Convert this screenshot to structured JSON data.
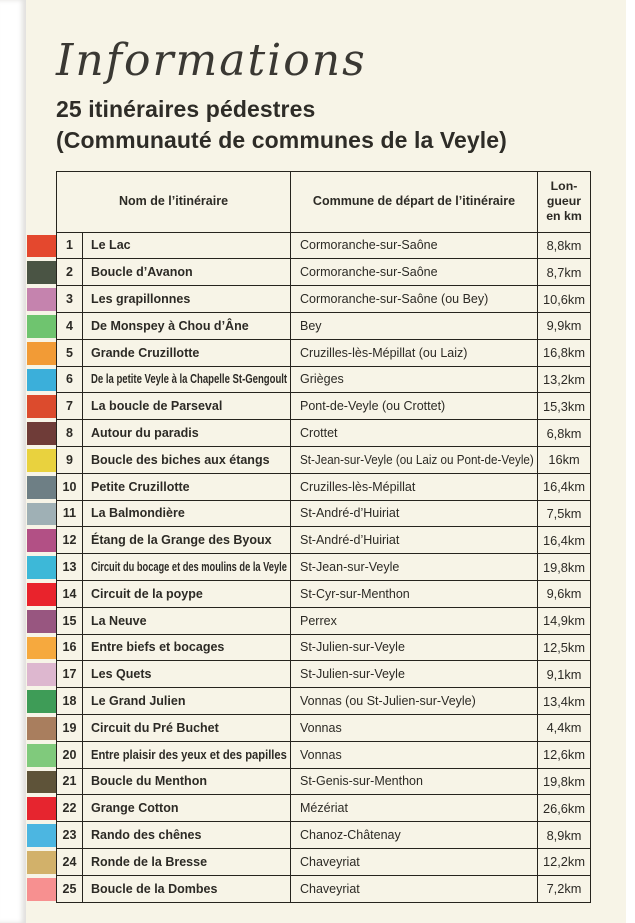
{
  "page": {
    "script_title": "Informations",
    "subtitle_line1": "25 itinéraires pédestres",
    "subtitle_line2": "(Communauté de communes de la Veyle)",
    "background_color": "#f7f4e7",
    "ink_color": "#26241e"
  },
  "table": {
    "headers": {
      "name": "Nom de l’itinéraire",
      "commune": "Commune de départ de l’itinéraire",
      "length_lines": [
        "Lon-",
        "gueur",
        "en km"
      ]
    },
    "rows": [
      {
        "num": "1",
        "color": "#e4482e",
        "name": "Le Lac",
        "commune": "Cormoranche-sur-Saône",
        "length": "8,8km"
      },
      {
        "num": "2",
        "color": "#4a5444",
        "name": "Boucle d’Avanon",
        "commune": "Cormoranche-sur-Saône",
        "length": "8,7km"
      },
      {
        "num": "3",
        "color": "#c583ae",
        "name": "Les grapillonnes",
        "commune": "Cormoranche-sur-Saône (ou Bey)",
        "length": "10,6km"
      },
      {
        "num": "4",
        "color": "#6fc46f",
        "name": "De Monspey à Chou d’Âne",
        "commune": "Bey",
        "length": "9,9km"
      },
      {
        "num": "5",
        "color": "#f29b36",
        "name": "Grande Cruzillotte",
        "commune": "Cruzilles-lès-Mépillat (ou Laiz)",
        "length": "16,8km"
      },
      {
        "num": "6",
        "color": "#3bafda",
        "name": "De la petite Veyle à la Chapelle St-Gengoult",
        "commune": "Grièges",
        "length": "13,2km"
      },
      {
        "num": "7",
        "color": "#dc4b2d",
        "name": "La boucle de Parseval",
        "commune": "Pont-de-Veyle (ou Crottet)",
        "length": "15,3km"
      },
      {
        "num": "8",
        "color": "#6f3c38",
        "name": "Autour du paradis",
        "commune": "Crottet",
        "length": "6,8km"
      },
      {
        "num": "9",
        "color": "#e9d23e",
        "name": "Boucle des biches aux étangs",
        "commune": "St-Jean-sur-Veyle (ou Laiz ou Pont-de-Veyle)",
        "length": "16km"
      },
      {
        "num": "10",
        "color": "#6e7f85",
        "name": "Petite Cruzillotte",
        "commune": "Cruzilles-lès-Mépillat",
        "length": "16,4km"
      },
      {
        "num": "11",
        "color": "#9fb0b5",
        "name": "La Balmondière",
        "commune": "St-André-d’Huiriat",
        "length": "7,5km"
      },
      {
        "num": "12",
        "color": "#b25085",
        "name": "Étang de la Grange des Byoux",
        "commune": "St-André-d’Huiriat",
        "length": "16,4km"
      },
      {
        "num": "13",
        "color": "#3db8d8",
        "name": "Circuit du bocage et des moulins de la Veyle",
        "commune": "St-Jean-sur-Veyle",
        "length": "19,8km"
      },
      {
        "num": "14",
        "color": "#e9232c",
        "name": "Circuit de la poype",
        "commune": "St-Cyr-sur-Menthon",
        "length": "9,6km"
      },
      {
        "num": "15",
        "color": "#985680",
        "name": "La Neuve",
        "commune": "Perrex",
        "length": "14,9km"
      },
      {
        "num": "16",
        "color": "#f6a93e",
        "name": "Entre biefs et bocages",
        "commune": "St-Julien-sur-Veyle",
        "length": "12,5km"
      },
      {
        "num": "17",
        "color": "#ddb7cf",
        "name": "Les Quets",
        "commune": "St-Julien-sur-Veyle",
        "length": "9,1km"
      },
      {
        "num": "18",
        "color": "#3e9c57",
        "name": "Le Grand Julien",
        "commune": "Vonnas (ou St-Julien-sur-Veyle)",
        "length": "13,4km"
      },
      {
        "num": "19",
        "color": "#a97e5e",
        "name": "Circuit du Pré Buchet",
        "commune": "Vonnas",
        "length": "4,4km"
      },
      {
        "num": "20",
        "color": "#80ca7c",
        "name": "Entre plaisir des yeux et des papilles",
        "commune": "Vonnas",
        "length": "12,6km"
      },
      {
        "num": "21",
        "color": "#5e5339",
        "name": "Boucle du Menthon",
        "commune": "St-Genis-sur-Menthon",
        "length": "19,8km"
      },
      {
        "num": "22",
        "color": "#e6252f",
        "name": "Grange Cotton",
        "commune": "Mézériat",
        "length": "26,6km"
      },
      {
        "num": "23",
        "color": "#4cb6e1",
        "name": "Rando des chênes",
        "commune": "Chanoz-Châtenay",
        "length": "8,9km"
      },
      {
        "num": "24",
        "color": "#d2b16a",
        "name": "Ronde de la Bresse",
        "commune": "Chaveyriat",
        "length": "12,2km"
      },
      {
        "num": "25",
        "color": "#f79090",
        "name": "Boucle de la Dombes",
        "commune": "Chaveyriat",
        "length": "7,2km"
      }
    ]
  }
}
